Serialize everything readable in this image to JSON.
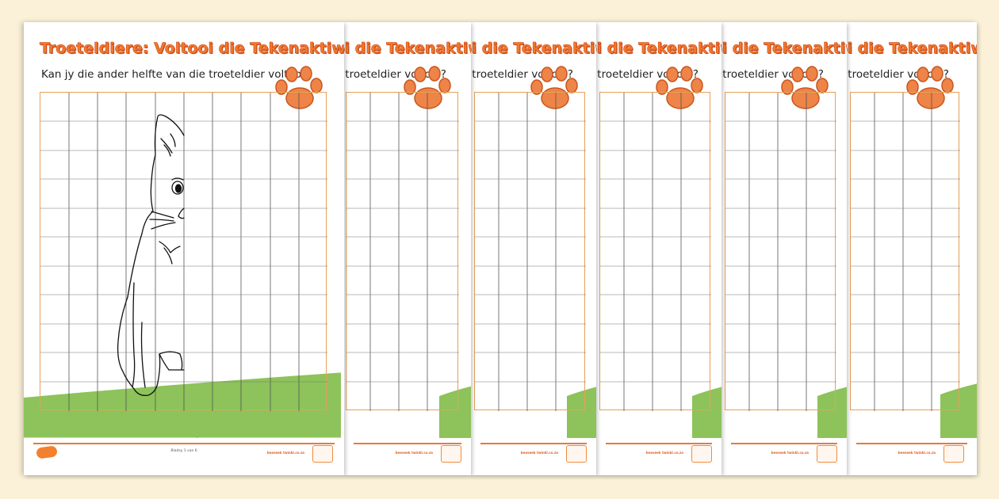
{
  "worksheet": {
    "title": "Troeteldiere: Voltooi die Tekenaktiwiteit",
    "question": "Kan jy die ander helfte van die troeteldier voltooi?",
    "footer": {
      "page_label": "Bladsy 1 van 6",
      "site": "beeseek twinkl.co.za"
    }
  },
  "colors": {
    "title_orange": "#f07a2c",
    "paw_orange": "#ee8447",
    "grass_green": "#8dc35a",
    "grid_border": "#e7a15a",
    "background": "#fbf1d8"
  },
  "icons": [
    "paw-print-icon",
    "cat-half-drawing",
    "twinkl-logo-icon",
    "quality-badge-icon"
  ]
}
